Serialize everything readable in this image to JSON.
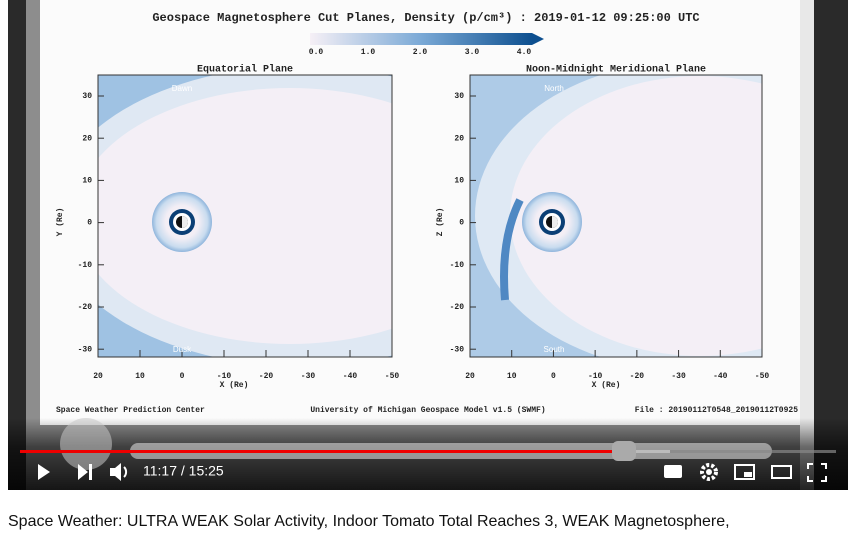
{
  "video": {
    "frame": {
      "title": "Geospace Magnetosphere Cut Planes, Density (p/cm³) : 2019-01-12 09:25:00 UTC",
      "colorbar_ticks": [
        "0.0",
        "1.0",
        "2.0",
        "3.0",
        "4.0"
      ],
      "panels": [
        {
          "title": "Equatorial Plane",
          "y_label": "Y (Re)",
          "x_label": "X (Re)",
          "top_label": "Dawn",
          "bottom_label": "Dusk",
          "y_ticks": [
            "30",
            "20",
            "10",
            "0",
            "-10",
            "-20",
            "-30"
          ],
          "x_ticks": [
            "20",
            "10",
            "0",
            "-10",
            "-20",
            "-30",
            "-40",
            "-50"
          ]
        },
        {
          "title": "Noon-Midnight Meridional Plane",
          "y_label": "Z (Re)",
          "x_label": "X (Re)",
          "top_label": "North",
          "bottom_label": "South",
          "y_ticks": [
            "30",
            "20",
            "10",
            "0",
            "-10",
            "-20",
            "-30"
          ],
          "x_ticks": [
            "20",
            "10",
            "0",
            "-10",
            "-20",
            "-30",
            "-40",
            "-50"
          ]
        }
      ],
      "footer": {
        "left": "Space Weather Prediction Center",
        "center": "University of Michigan Geospace Model v1.5 (SWMF)",
        "right": "File : 20190112T0548_20190112T0925"
      }
    },
    "controls": {
      "time": "11:17 / 15:25"
    }
  },
  "video_title": "Space Weather: ULTRA WEAK Solar Activity, Indoor Tomato Total Reaches 3, WEAK Magnetosphere,"
}
